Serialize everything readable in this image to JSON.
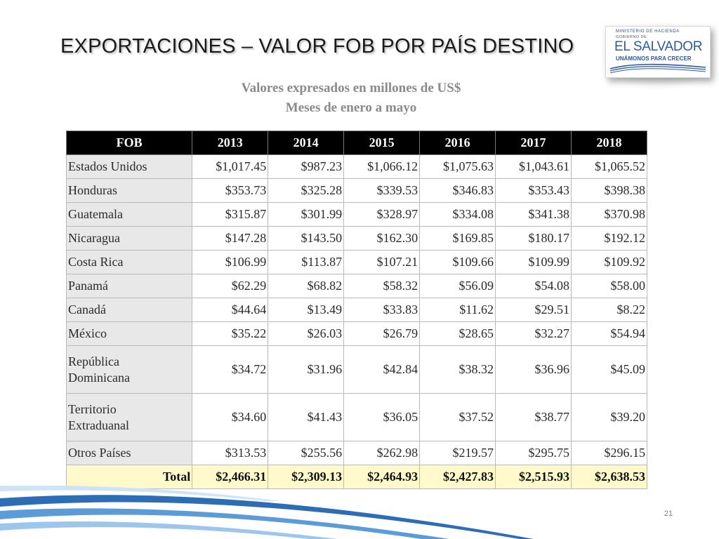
{
  "title": "EXPORTACIONES –  VALOR FOB POR PAÍS DESTINO",
  "logo": {
    "top_text": "MINISTERIO DE HACIENDA",
    "gob_text": "GOBIERNO DE",
    "main_text": "EL SALVADOR",
    "sub_text": "UNÁMONOS PARA CRECER"
  },
  "subtitle_line1": "Valores expresados en millones de US$",
  "subtitle_line2": "Meses de enero a mayo",
  "table": {
    "headers": [
      "FOB",
      "2013",
      "2014",
      "2015",
      "2016",
      "2017",
      "2018"
    ],
    "rows": [
      {
        "label": "Estados Unidos",
        "values": [
          "$1,017.45",
          "$987.23",
          "$1,066.12",
          "$1,075.63",
          "$1,043.61",
          "$1,065.52"
        ]
      },
      {
        "label": "Honduras",
        "values": [
          "$353.73",
          "$325.28",
          "$339.53",
          "$346.83",
          "$353.43",
          "$398.38"
        ]
      },
      {
        "label": "Guatemala",
        "values": [
          "$315.87",
          "$301.99",
          "$328.97",
          "$334.08",
          "$341.38",
          "$370.98"
        ]
      },
      {
        "label": "Nicaragua",
        "values": [
          "$147.28",
          "$143.50",
          "$162.30",
          "$169.85",
          "$180.17",
          "$192.12"
        ]
      },
      {
        "label": "Costa Rica",
        "values": [
          "$106.99",
          "$113.87",
          "$107.21",
          "$109.66",
          "$109.99",
          "$109.92"
        ]
      },
      {
        "label": "Panamá",
        "values": [
          "$62.29",
          "$68.82",
          "$58.32",
          "$56.09",
          "$54.08",
          "$58.00"
        ]
      },
      {
        "label": "Canadá",
        "values": [
          "$44.64",
          "$13.49",
          "$33.83",
          "$11.62",
          "$29.51",
          "$8.22"
        ]
      },
      {
        "label": "México",
        "values": [
          "$35.22",
          "$26.03",
          "$26.79",
          "$28.65",
          "$32.27",
          "$54.94"
        ]
      },
      {
        "label_line1": "República",
        "label_line2": "Dominicana",
        "values": [
          "$34.72",
          "$31.96",
          "$42.84",
          "$38.32",
          "$36.96",
          "$45.09"
        ]
      },
      {
        "label_line1": "Territorio",
        "label_line2": "Extraduanal",
        "values": [
          "$34.60",
          "$41.43",
          "$36.05",
          "$37.52",
          "$38.77",
          "$39.20"
        ]
      },
      {
        "label": "Otros Países",
        "values": [
          "$313.53",
          "$255.56",
          "$262.98",
          "$219.57",
          "$295.75",
          "$296.15"
        ]
      }
    ],
    "total": {
      "label": "Total",
      "values": [
        "$2,466.31",
        "$2,309.13",
        "$2,464.93",
        "$2,427.83",
        "$2,515.93",
        "$2,638.53"
      ]
    }
  },
  "page_number": "21",
  "colors": {
    "header_bg": "#000000",
    "total_bg": "#fff9cc",
    "country_bg": "#e8e8e8",
    "brand_blue": "#2c5aa0"
  }
}
